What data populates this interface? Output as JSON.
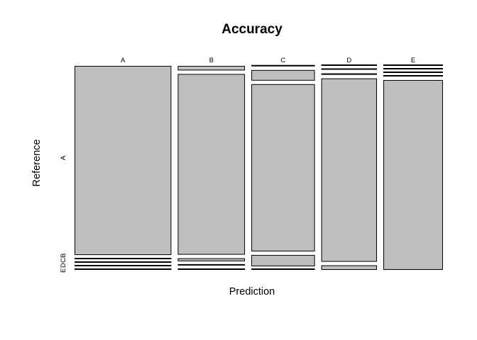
{
  "chart_data": {
    "type": "mosaic",
    "title": "Accuracy",
    "xlabel": "Prediction",
    "ylabel": "Reference",
    "categories": [
      "A",
      "B",
      "C",
      "D",
      "E"
    ],
    "y_tick_labels": [
      "A",
      "E",
      "D",
      "C",
      "B"
    ],
    "fill_color": "#bebebe",
    "column_widths": [
      0.294,
      0.204,
      0.193,
      0.169,
      0.181
    ],
    "cells": [
      {
        "prediction": "A",
        "reference": [
          "A",
          "B",
          "C",
          "D",
          "E"
        ],
        "proportions": [
          0.9965,
          0.0035,
          0,
          0,
          0
        ]
      },
      {
        "prediction": "B",
        "reference": [
          "A",
          "B",
          "C",
          "D",
          "E"
        ],
        "proportions": [
          0.024,
          0.952,
          0.016,
          0.004,
          0.004
        ]
      },
      {
        "prediction": "C",
        "reference": [
          "A",
          "B",
          "C",
          "D",
          "E"
        ],
        "proportions": [
          0.003,
          0.056,
          0.881,
          0.06,
          0.0
        ]
      },
      {
        "prediction": "D",
        "reference": [
          "A",
          "B",
          "C",
          "D",
          "E"
        ],
        "proportions": [
          0.0,
          0.002,
          0.008,
          0.966,
          0.024
        ]
      },
      {
        "prediction": "E",
        "reference": [
          "A",
          "B",
          "C",
          "D",
          "E"
        ],
        "proportions": [
          0.0,
          0.0,
          0.0,
          0.0,
          1.0
        ]
      }
    ],
    "grid": false,
    "legend": "none"
  }
}
